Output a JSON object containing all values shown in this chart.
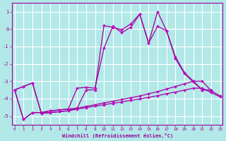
{
  "xlabel": "Windchill (Refroidissement éolien,°C)",
  "bg_color": "#b2e8e8",
  "grid_color": "#ffffff",
  "line_color": "#990099",
  "marker_color": "#cc00cc",
  "xmin": 0,
  "xmax": 23,
  "ymin": -5.5,
  "ymax": 1.5,
  "yticks": [
    1,
    0,
    -1,
    -2,
    -3,
    -4,
    -5
  ],
  "xticks": [
    0,
    1,
    2,
    3,
    4,
    5,
    6,
    7,
    8,
    9,
    10,
    11,
    12,
    13,
    14,
    15,
    16,
    17,
    18,
    19,
    20,
    21,
    22,
    23
  ],
  "line1_x": [
    0,
    1,
    2,
    3,
    4,
    5,
    6,
    7,
    8,
    9,
    10,
    11,
    12,
    13,
    14,
    15,
    16,
    17,
    18,
    19,
    20,
    21,
    22
  ],
  "line1_y": [
    -3.5,
    -5.2,
    -4.8,
    -4.8,
    -4.7,
    -4.65,
    -4.6,
    -4.55,
    -3.5,
    -3.5,
    0.2,
    0.1,
    -0.05,
    0.3,
    0.85,
    -0.8,
    1.0,
    -0.1,
    -1.6,
    -2.5,
    -3.0,
    -3.5,
    -3.5
  ],
  "line2_x": [
    0,
    1,
    2,
    3,
    4,
    5,
    6,
    7,
    8,
    9,
    10,
    11,
    12,
    13,
    14,
    15,
    16,
    17,
    18,
    19,
    20,
    21,
    22
  ],
  "line2_y": [
    -3.5,
    -5.2,
    -4.8,
    -4.8,
    -4.7,
    -4.65,
    -4.6,
    -3.4,
    -3.35,
    -3.4,
    -1.1,
    0.15,
    -0.2,
    0.1,
    0.85,
    -0.8,
    0.15,
    -0.1,
    -1.7,
    -2.55,
    -3.05,
    -3.5,
    -3.5
  ],
  "line3_x": [
    0,
    1,
    2,
    3,
    4,
    5,
    6,
    7,
    8,
    9,
    10,
    11,
    12,
    13,
    14,
    15,
    16,
    17,
    18,
    19,
    20,
    21,
    22,
    23
  ],
  "line3_y": [
    -3.5,
    -3.3,
    -3.1,
    -4.85,
    -4.8,
    -4.75,
    -4.7,
    -4.55,
    -4.45,
    -4.35,
    -4.25,
    -4.15,
    -4.05,
    -3.95,
    -3.85,
    -3.72,
    -3.6,
    -3.45,
    -3.3,
    -3.15,
    -3.0,
    -3.0,
    -3.55,
    -3.85
  ],
  "line4_x": [
    0,
    1,
    2,
    3,
    4,
    5,
    6,
    7,
    8,
    9,
    10,
    11,
    12,
    13,
    14,
    15,
    16,
    17,
    18,
    19,
    20,
    21,
    22,
    23
  ],
  "line4_y": [
    -3.5,
    -3.3,
    -3.1,
    -4.85,
    -4.8,
    -4.75,
    -4.7,
    -4.6,
    -4.52,
    -4.43,
    -4.35,
    -4.27,
    -4.19,
    -4.1,
    -4.02,
    -3.93,
    -3.83,
    -3.72,
    -3.62,
    -3.51,
    -3.4,
    -3.4,
    -3.65,
    -3.9
  ]
}
